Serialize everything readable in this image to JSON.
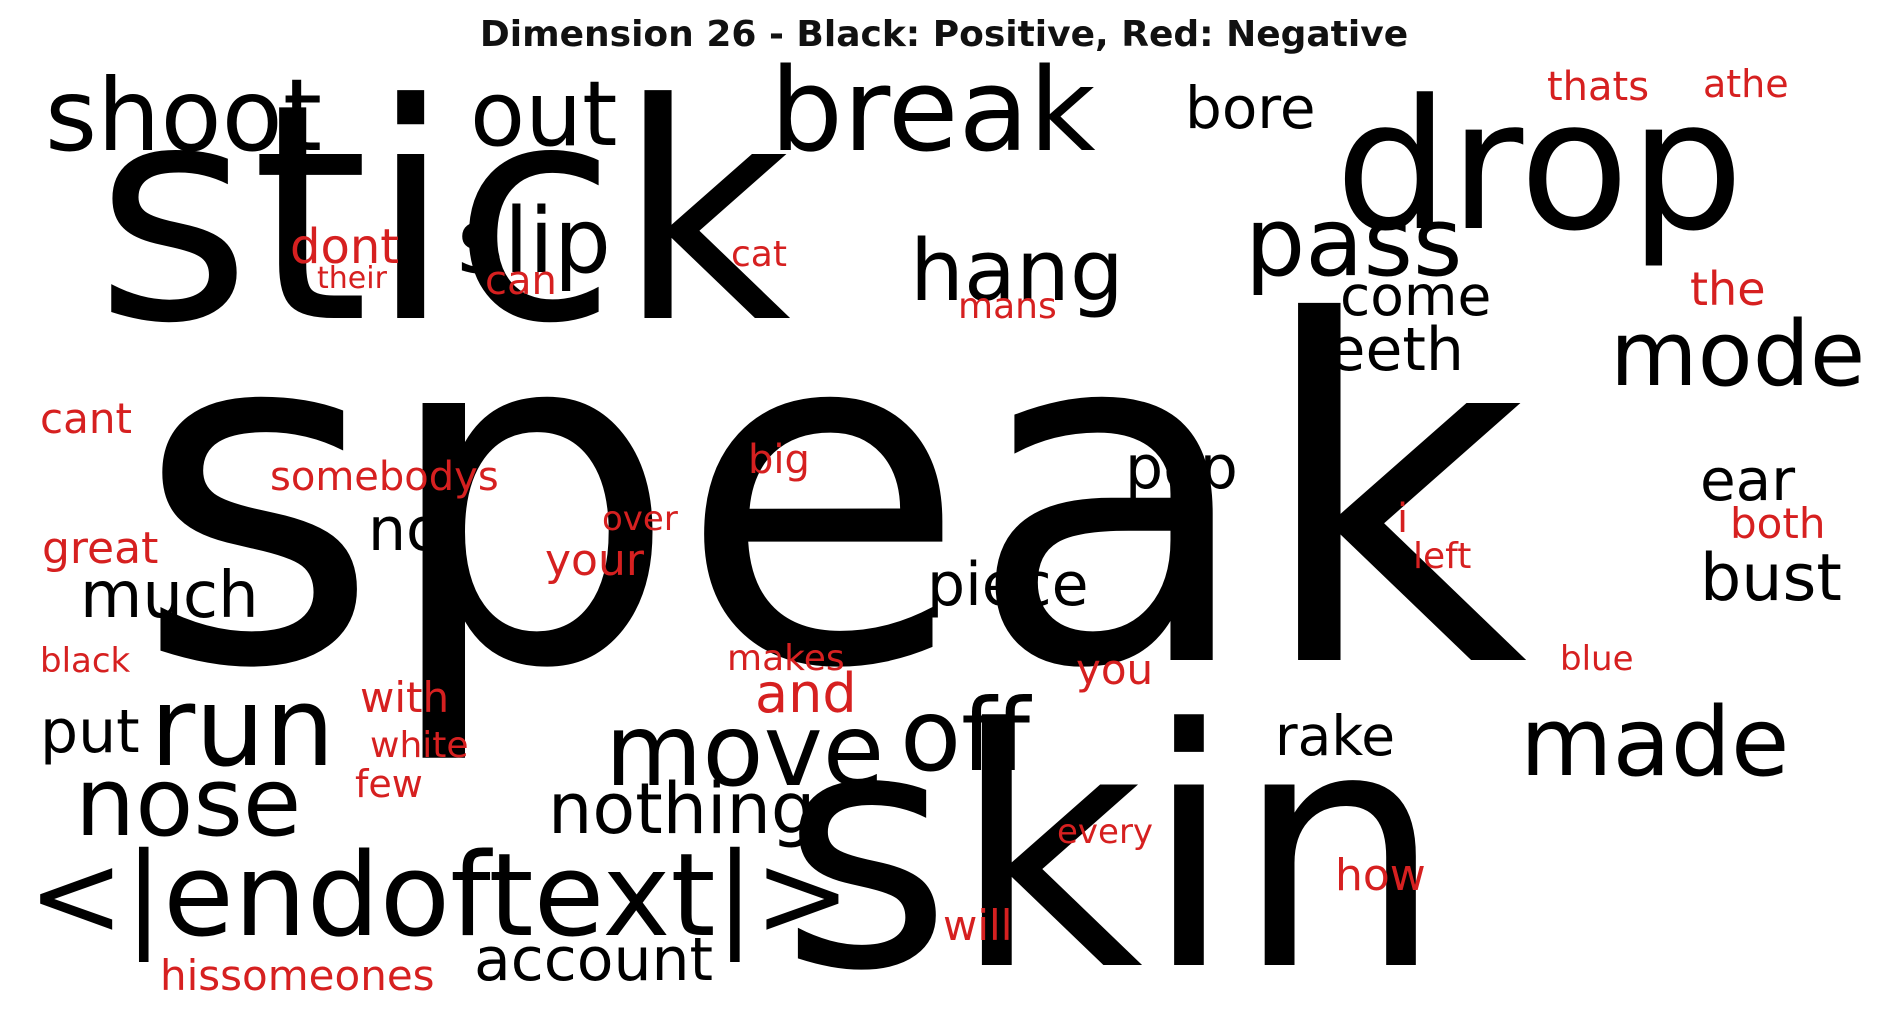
{
  "title": "Dimension 26 - Black: Positive, Red: Negative",
  "colors": {
    "positive": "#000000",
    "negative": "#d62020"
  },
  "positive_words": [
    "speak",
    "stick",
    "skin",
    "drop",
    "break",
    "shoot",
    "out",
    "slip",
    "pass",
    "hang",
    "bore",
    "mode",
    "come",
    "teeth",
    "pop",
    "not",
    "ear",
    "much",
    "piece",
    "bust",
    "run",
    "put",
    "move",
    "off",
    "rake",
    "made",
    "nose",
    "nothing",
    "<|endoftext|>",
    "account"
  ],
  "negative_words": [
    "thats",
    "athe",
    "dont",
    "their",
    "can",
    "cat",
    "mans",
    "the",
    "cant",
    "somebodys",
    "big",
    "over",
    "i",
    "both",
    "great",
    "your",
    "left",
    "black",
    "makes",
    "blue",
    "you",
    "with",
    "and",
    "white",
    "few",
    "every",
    "how",
    "will",
    "hissomeones"
  ]
}
